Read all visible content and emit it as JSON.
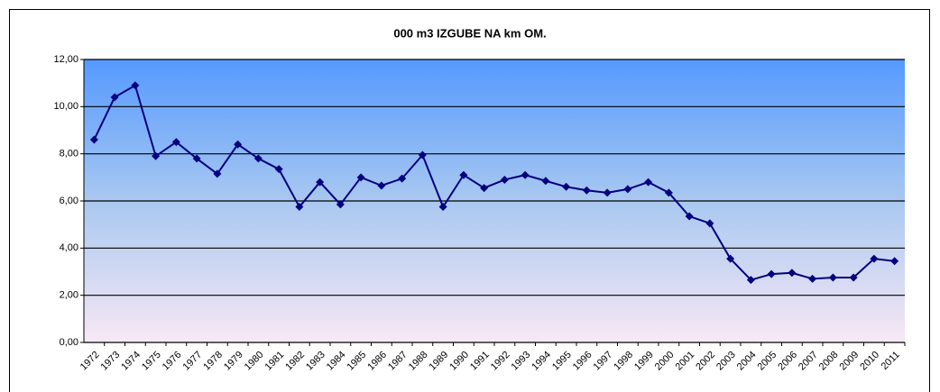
{
  "chart_data": {
    "type": "line",
    "title": "000 m3 IZGUBE NA km OM.",
    "categories": [
      "1972",
      "1973",
      "1974",
      "1975",
      "1976",
      "1977",
      "1978",
      "1979",
      "1980",
      "1981",
      "1982",
      "1983",
      "1984",
      "1985",
      "1986",
      "1987",
      "1988",
      "1989",
      "1990",
      "1991",
      "1992",
      "1993",
      "1994",
      "1995",
      "1996",
      "1997",
      "1998",
      "1999",
      "2000",
      "2001",
      "2002",
      "2003",
      "2004",
      "2005",
      "2006",
      "2007",
      "2008",
      "2009",
      "2010",
      "2011"
    ],
    "series": [
      {
        "name": "000 m3 IZGUBE NA km OM.",
        "color": "#000080",
        "values": [
          8.6,
          10.4,
          10.9,
          7.9,
          8.5,
          7.8,
          7.15,
          8.4,
          7.8,
          7.35,
          5.75,
          6.8,
          5.85,
          7.0,
          6.65,
          6.95,
          7.95,
          5.75,
          7.1,
          6.55,
          6.9,
          7.1,
          6.85,
          6.6,
          6.45,
          6.35,
          6.5,
          6.8,
          6.35,
          5.35,
          5.05,
          3.55,
          2.65,
          2.9,
          2.95,
          2.7,
          2.75,
          2.75,
          3.55,
          3.45
        ]
      }
    ],
    "ylim": [
      0,
      12
    ],
    "yticks": [
      {
        "value": 0,
        "label": "0,00"
      },
      {
        "value": 2,
        "label": "2,00"
      },
      {
        "value": 4,
        "label": "4,00"
      },
      {
        "value": 6,
        "label": "6,00"
      },
      {
        "value": 8,
        "label": "8,00"
      },
      {
        "value": 10,
        "label": "10,00"
      },
      {
        "value": 12,
        "label": "12,00"
      }
    ],
    "grid": true
  }
}
